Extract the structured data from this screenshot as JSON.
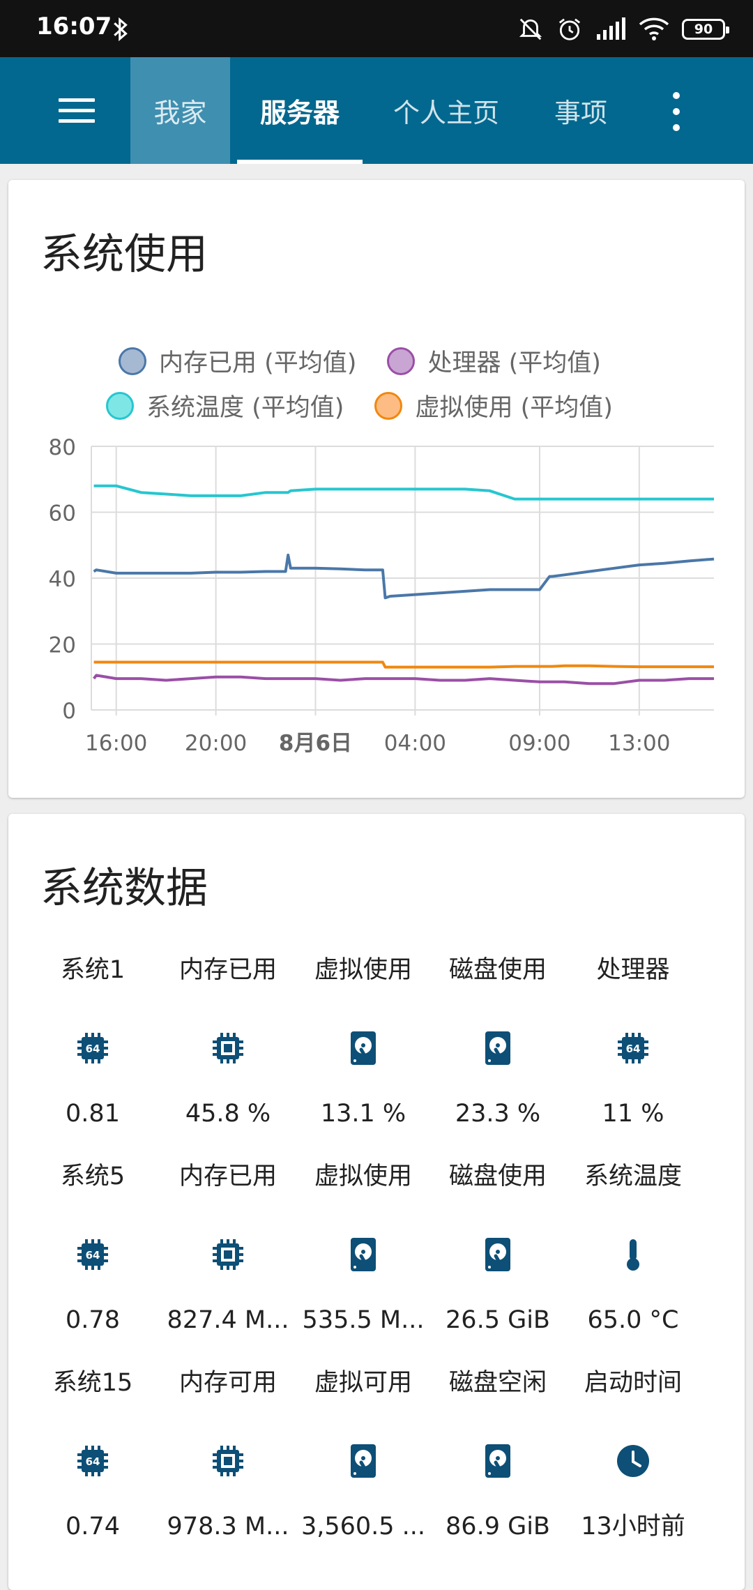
{
  "status_bar": {
    "time": "16:07",
    "battery": "90"
  },
  "app_bar": {
    "tabs": [
      {
        "label": "我家",
        "selected": false
      },
      {
        "label": "服务器",
        "selected": true
      },
      {
        "label": "个人主页",
        "selected": false
      },
      {
        "label": "事项",
        "selected": false
      }
    ]
  },
  "usage_card": {
    "title": "系统使用",
    "chart_data": {
      "type": "line",
      "ylim": [
        0,
        80
      ],
      "yticks": [
        "0",
        "20",
        "40",
        "60",
        "80"
      ],
      "xticks": [
        "16:00",
        "20:00",
        "8月6日",
        "04:00",
        "09:00",
        "13:00"
      ],
      "x_hours": [
        15.1,
        15.2,
        16,
        17,
        18,
        19,
        20,
        21,
        22,
        22.8,
        22.9,
        23,
        24,
        25,
        26,
        26.7,
        26.8,
        27,
        28,
        29,
        30,
        31,
        32,
        33,
        33.4,
        33.5,
        34,
        35,
        36,
        37,
        38,
        39,
        40
      ],
      "series": [
        {
          "name": "内存已用 (平均值)",
          "color": "#4a77a8",
          "fill": "#a6b9d3",
          "values": [
            42,
            42.5,
            41.5,
            41.5,
            41.5,
            41.5,
            41.8,
            41.8,
            42,
            42,
            47,
            43,
            43,
            42.8,
            42.5,
            42.5,
            34,
            34.5,
            35,
            35.5,
            36,
            36.5,
            36.5,
            36.5,
            40.5,
            40.5,
            41,
            42,
            43,
            44,
            44.5,
            45.2,
            45.8
          ]
        },
        {
          "name": "处理器 (平均值)",
          "color": "#9a4fa6",
          "fill": "#c9a5d3",
          "values": [
            9.5,
            10.5,
            9.5,
            9.5,
            9,
            9.5,
            10,
            10,
            9.5,
            9.5,
            9.5,
            9.5,
            9.5,
            9,
            9.5,
            9.5,
            9.5,
            9.5,
            9.5,
            9,
            9,
            9.5,
            9,
            8.5,
            8.5,
            8.5,
            8.5,
            8,
            8,
            9,
            9,
            9.5,
            9.5
          ]
        },
        {
          "name": "系统温度 (平均值)",
          "color": "#26c6d0",
          "fill": "#7fe6e6",
          "values": [
            68,
            68,
            68,
            66,
            65.5,
            65,
            65,
            65,
            66,
            66,
            66,
            66.5,
            67,
            67,
            67,
            67,
            67,
            67,
            67,
            67,
            67,
            66.5,
            64,
            64,
            64,
            64,
            64,
            64,
            64,
            64,
            64,
            64,
            64
          ]
        },
        {
          "name": "虚拟使用 (平均值)",
          "color": "#f0880f",
          "fill": "#fdbc84",
          "values": [
            14.5,
            14.5,
            14.5,
            14.5,
            14.5,
            14.5,
            14.5,
            14.5,
            14.5,
            14.5,
            14.5,
            14.5,
            14.5,
            14.5,
            14.5,
            14.5,
            13,
            13,
            13,
            13,
            13,
            13,
            13.2,
            13.2,
            13.2,
            13.2,
            13.4,
            13.4,
            13.2,
            13.1,
            13.1,
            13.1,
            13.1
          ]
        }
      ]
    }
  },
  "data_card": {
    "title": "系统数据",
    "rows": [
      [
        {
          "label": "系统1",
          "icon": "cpu-64-icon",
          "value": "0.81"
        },
        {
          "label": "内存已用",
          "icon": "memory-chip-icon",
          "value": "45.8 %"
        },
        {
          "label": "虚拟使用",
          "icon": "harddisk-icon",
          "value": "13.1 %"
        },
        {
          "label": "磁盘使用",
          "icon": "harddisk-icon",
          "value": "23.3 %"
        },
        {
          "label": "处理器",
          "icon": "cpu-64-icon",
          "value": "11 %"
        }
      ],
      [
        {
          "label": "系统5",
          "icon": "cpu-64-icon",
          "value": "0.78"
        },
        {
          "label": "内存已用",
          "icon": "memory-chip-icon",
          "value": "827.4 M..."
        },
        {
          "label": "虚拟使用",
          "icon": "harddisk-icon",
          "value": "535.5 M..."
        },
        {
          "label": "磁盘使用",
          "icon": "harddisk-icon",
          "value": "26.5 GiB"
        },
        {
          "label": "系统温度",
          "icon": "thermometer-icon",
          "value": "65.0 °C"
        }
      ],
      [
        {
          "label": "系统15",
          "icon": "cpu-64-icon",
          "value": "0.74"
        },
        {
          "label": "内存可用",
          "icon": "memory-chip-icon",
          "value": "978.3 M..."
        },
        {
          "label": "虚拟可用",
          "icon": "harddisk-icon",
          "value": "3,560.5 ..."
        },
        {
          "label": "磁盘空闲",
          "icon": "harddisk-icon",
          "value": "86.9 GiB"
        },
        {
          "label": "启动时间",
          "icon": "clock-icon",
          "value": "13小时前"
        }
      ]
    ]
  },
  "colors": {
    "app_bar": "#03688f",
    "icon": "#0d4f76"
  }
}
